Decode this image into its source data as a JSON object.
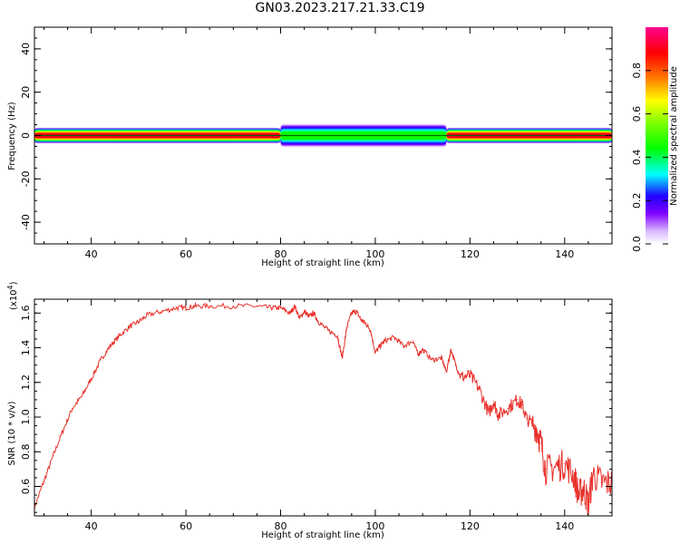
{
  "title": "GN03.2023.217.21.33.C19",
  "chart_data": [
    {
      "type": "heatmap",
      "xlabel": "Height of straight line (km)",
      "ylabel": "Frequency (Hz)",
      "xlim": [
        28,
        150
      ],
      "ylim": [
        -50,
        50
      ],
      "xticks": [
        "40",
        "60",
        "80",
        "100",
        "120",
        "140"
      ],
      "yticks": [
        "-40",
        "-20",
        "0",
        "20",
        "40"
      ],
      "colorbar": {
        "label": "Normalized spectral amplitude",
        "range": [
          0,
          1
        ],
        "ticks": [
          "0.0",
          "0.2",
          "0.4",
          "0.6",
          "0.8"
        ]
      },
      "band_center_hz": 0,
      "segments": [
        {
          "x": [
            28,
            80
          ],
          "peak_amplitude": 0.9,
          "half_width_hz": 2
        },
        {
          "x": [
            80,
            115
          ],
          "peak_amplitude": 0.45,
          "half_width_hz": 3
        },
        {
          "x": [
            115,
            150
          ],
          "peak_amplitude": 0.9,
          "half_width_hz": 2
        }
      ]
    },
    {
      "type": "line",
      "xlabel": "Height of straight line (km)",
      "ylabel": "SNR (10 * v/v)",
      "y_multiplier": "(x10",
      "y_multiplier_exp": "4",
      "xlim": [
        28,
        150
      ],
      "ylim": [
        0.43,
        1.68
      ],
      "xticks": [
        "40",
        "60",
        "80",
        "100",
        "120",
        "140"
      ],
      "yticks": [
        "0.6",
        "0.8",
        "1.0",
        "1.2",
        "1.4",
        "1.6"
      ],
      "series": [
        {
          "color": "#e8312a",
          "x": [
            28,
            30,
            32,
            34,
            36,
            38,
            40,
            42,
            44,
            46,
            48,
            50,
            52,
            55,
            58,
            60,
            62,
            65,
            70,
            75,
            78,
            80,
            82,
            83,
            84,
            85,
            86,
            87,
            88,
            90,
            92,
            93,
            94,
            95,
            96,
            97,
            98,
            99,
            100,
            101,
            102,
            104,
            106,
            108,
            109,
            110,
            112,
            114,
            115,
            116,
            117,
            118,
            120,
            122,
            124,
            125,
            126,
            128,
            130,
            131,
            132,
            134,
            135,
            136,
            138,
            140,
            142,
            143,
            144,
            145,
            146,
            148,
            150
          ],
          "y": [
            0.48,
            0.63,
            0.78,
            0.92,
            1.05,
            1.12,
            1.22,
            1.33,
            1.41,
            1.47,
            1.52,
            1.55,
            1.59,
            1.61,
            1.63,
            1.63,
            1.64,
            1.64,
            1.64,
            1.64,
            1.63,
            1.63,
            1.6,
            1.64,
            1.57,
            1.61,
            1.58,
            1.6,
            1.55,
            1.5,
            1.47,
            1.34,
            1.52,
            1.6,
            1.61,
            1.56,
            1.54,
            1.5,
            1.37,
            1.41,
            1.44,
            1.46,
            1.41,
            1.44,
            1.36,
            1.39,
            1.33,
            1.34,
            1.26,
            1.39,
            1.3,
            1.23,
            1.24,
            1.16,
            1.02,
            1.09,
            1.01,
            1.05,
            1.1,
            1.07,
            0.99,
            0.94,
            0.85,
            0.7,
            0.71,
            0.73,
            0.66,
            0.55,
            0.59,
            0.5,
            0.67,
            0.62,
            0.62
          ]
        }
      ]
    }
  ]
}
